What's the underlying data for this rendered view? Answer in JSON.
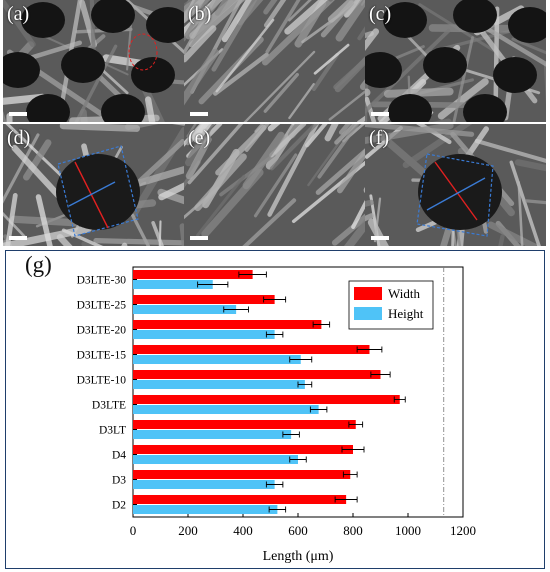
{
  "figure": {
    "panels": [
      {
        "label": "(a)",
        "image": "sem-micrograph-porous"
      },
      {
        "label": "(b)",
        "image": "sem-micrograph-fibrous"
      },
      {
        "label": "(c)",
        "image": "sem-micrograph-porous"
      },
      {
        "label": "(d)",
        "image": "sem-micrograph-pore-closeup"
      },
      {
        "label": "(e)",
        "image": "sem-micrograph-fibrous"
      },
      {
        "label": "(f)",
        "image": "sem-micrograph-pore-closeup"
      }
    ],
    "chart_panel_label": "(g)"
  },
  "colors": {
    "width": "#ff0000",
    "height": "#4fc3f7",
    "panel_border": "#1f3e6b",
    "annotation_red": "#e02020",
    "annotation_blue": "#3a7bd5"
  },
  "chart_data": {
    "type": "bar",
    "orientation": "horizontal",
    "categories": [
      "D3LTE-30",
      "D3LTE-25",
      "D3LTE-20",
      "D3LTE-15",
      "D3LTE-10",
      "D3LTE",
      "D3LT",
      "D4",
      "D3",
      "D2"
    ],
    "series": [
      {
        "name": "Width",
        "values": [
          435,
          515,
          685,
          860,
          900,
          970,
          810,
          800,
          790,
          775
        ],
        "errors": [
          50,
          40,
          30,
          45,
          35,
          20,
          25,
          40,
          25,
          40
        ]
      },
      {
        "name": "Height",
        "values": [
          290,
          375,
          515,
          610,
          625,
          675,
          575,
          600,
          515,
          525
        ],
        "errors": [
          55,
          45,
          30,
          40,
          25,
          30,
          30,
          30,
          30,
          30
        ]
      }
    ],
    "xlabel": "Length (μm)",
    "ylabel": "",
    "xlim": [
      0,
      1200
    ],
    "xticks": [
      0,
      200,
      400,
      600,
      800,
      1000,
      1200
    ],
    "reference_line_x": 1130,
    "grid": false,
    "legend_position": "top-right"
  }
}
